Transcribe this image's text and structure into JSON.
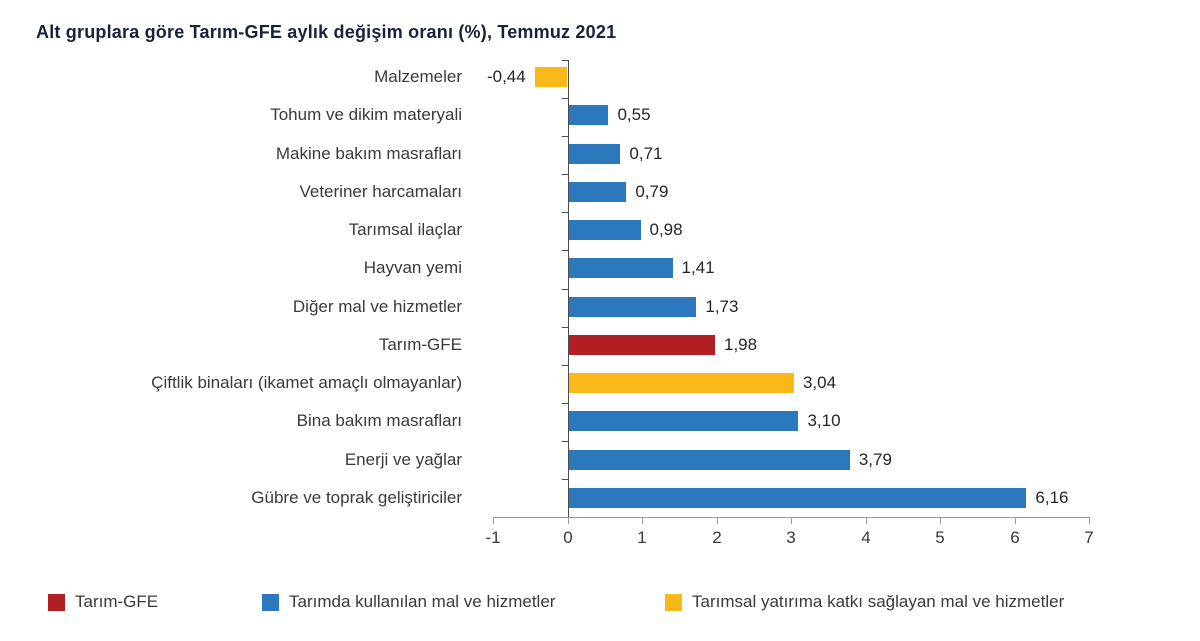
{
  "title": "Alt gruplara göre Tarım-GFE aylık değişim oranı (%), Temmuz 2021",
  "colors": {
    "red": "#b11e23",
    "blue": "#2b79bc",
    "yellow": "#fbb819",
    "axis_gray": "#9a9a9a",
    "zero_axis": "#4c4c4c",
    "label_text": "#3a3a3a",
    "title_text": "#19213c"
  },
  "chart_data": {
    "type": "bar",
    "orientation": "horizontal",
    "title": "Alt gruplara göre Tarım-GFE aylık değişim oranı (%), Temmuz 2021",
    "xlabel": "",
    "ylabel": "",
    "xlim": [
      -1,
      7
    ],
    "x_ticks": [
      "-1",
      "0",
      "1",
      "2",
      "3",
      "4",
      "5",
      "6",
      "7"
    ],
    "grid": false,
    "legend_position": "bottom",
    "categories": [
      "Malzemeler",
      "Tohum ve dikim materyali",
      "Makine bakım masrafları",
      "Veteriner harcamaları",
      "Tarımsal ilaçlar",
      "Hayvan yemi",
      "Diğer mal ve hizmetler",
      "Tarım-GFE",
      "Çiftlik binaları (ikamet amaçlı olmayanlar)",
      "Bina bakım masrafları",
      "Enerji ve yağlar",
      "Gübre ve toprak geliştiriciler"
    ],
    "values": [
      -0.44,
      0.55,
      0.71,
      0.79,
      0.98,
      1.41,
      1.73,
      1.98,
      3.04,
      3.1,
      3.79,
      6.16
    ],
    "value_labels": [
      "-0,44",
      "0,55",
      "0,71",
      "0,79",
      "0,98",
      "1,41",
      "1,73",
      "1,98",
      "3,04",
      "3,10",
      "3,79",
      "6,16"
    ],
    "bar_series": [
      "Tarımsal yatırıma katkı sağlayan mal ve hizmetler",
      "Tarımda kullanılan mal ve hizmetler",
      "Tarımda kullanılan mal ve hizmetler",
      "Tarımda kullanılan mal ve hizmetler",
      "Tarımda kullanılan mal ve hizmetler",
      "Tarımda kullanılan mal ve hizmetler",
      "Tarımda kullanılan mal ve hizmetler",
      "Tarım-GFE",
      "Tarımsal yatırıma katkı sağlayan mal ve hizmetler",
      "Tarımda kullanılan mal ve hizmetler",
      "Tarımda kullanılan mal ve hizmetler",
      "Tarımda kullanılan mal ve hizmetler"
    ],
    "bar_color_keys": [
      "yellow",
      "blue",
      "blue",
      "blue",
      "blue",
      "blue",
      "blue",
      "red",
      "yellow",
      "blue",
      "blue",
      "blue"
    ]
  },
  "legend": {
    "items": [
      {
        "label": "Tarım-GFE",
        "color_key": "red"
      },
      {
        "label": "Tarımda kullanılan mal ve hizmetler",
        "color_key": "blue"
      },
      {
        "label": "Tarımsal yatırıma katkı sağlayan mal ve hizmetler",
        "color_key": "yellow"
      }
    ]
  }
}
